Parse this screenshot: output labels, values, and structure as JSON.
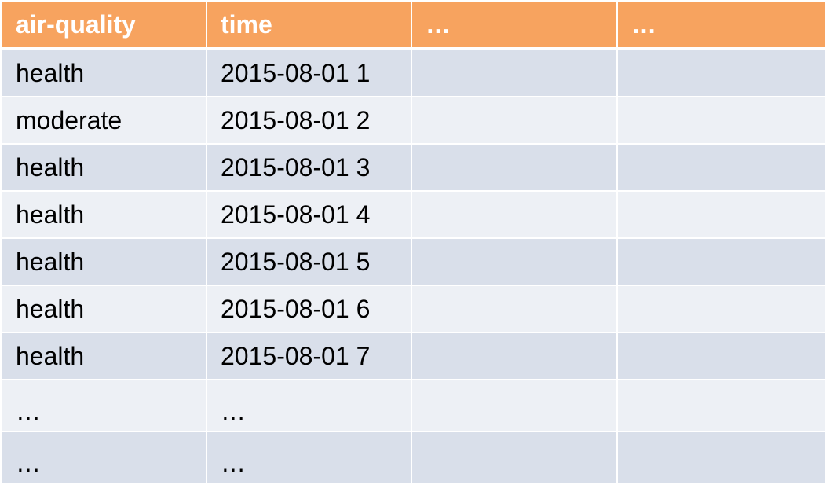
{
  "table": {
    "headers": [
      "air-quality",
      "time",
      "…",
      "…"
    ],
    "rows": [
      [
        "health",
        "2015-08-01 1",
        "",
        ""
      ],
      [
        "moderate",
        "2015-08-01 2",
        "",
        ""
      ],
      [
        "health",
        "2015-08-01 3",
        "",
        ""
      ],
      [
        "health",
        "2015-08-01 4",
        "",
        ""
      ],
      [
        "health",
        "2015-08-01 5",
        "",
        ""
      ],
      [
        "health",
        "2015-08-01 6",
        "",
        ""
      ],
      [
        "health",
        "2015-08-01 7",
        "",
        ""
      ],
      [
        "…",
        "…",
        "",
        ""
      ],
      [
        "…",
        "…",
        "",
        ""
      ]
    ]
  },
  "colors": {
    "header_bg": "#f7a35f",
    "row_dark": "#d9dfea",
    "row_light": "#edf0f5"
  }
}
